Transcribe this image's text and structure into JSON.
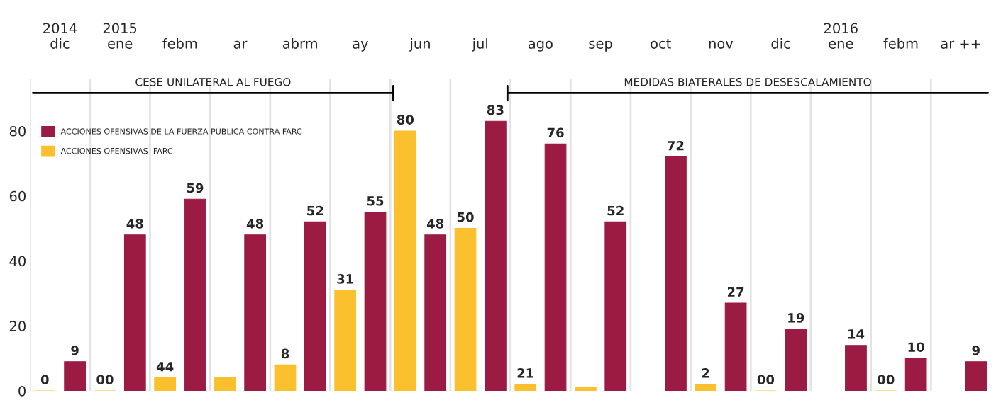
{
  "chart_data": {
    "type": "bar",
    "categories": [
      "2014\ndic",
      "2015\nene",
      "febm",
      "ar",
      "abrm",
      "ay",
      "jun",
      "jul",
      "ago",
      "sep",
      "oct",
      "nov",
      "dic",
      "2016\nene",
      "febm",
      "ar ++"
    ],
    "series": [
      {
        "name": "ACCIONES OFENSIVAS  FARC",
        "color": "#fbc02d",
        "values": [
          0,
          0,
          4,
          4,
          8,
          31,
          80,
          50,
          2,
          1,
          null,
          2,
          0,
          null,
          0,
          null
        ],
        "value_labels": [
          "0",
          "00",
          null,
          null,
          "8",
          "31",
          "80",
          "50",
          null,
          null,
          null,
          "2",
          "00",
          null,
          "00",
          null
        ]
      },
      {
        "name": "ACCIONES OFENSIVAS DE LA FUERZA PÚBLICA CONTRA FARC",
        "color": "#9b1b42",
        "values": [
          9,
          48,
          59,
          48,
          52,
          55,
          48,
          83,
          76,
          52,
          72,
          27,
          19,
          14,
          10,
          9
        ],
        "value_labels": [
          "9",
          "48",
          "59",
          "48",
          "52",
          "55",
          "48",
          "83",
          "76",
          "52",
          "72",
          "27",
          "19",
          "14",
          "10",
          "9"
        ]
      }
    ],
    "ylim": [
      0,
      96
    ],
    "yticks": [
      0,
      20,
      40,
      60,
      80
    ],
    "grid": "x",
    "legend": "top left",
    "annotations": [
      "CESE UNILATERAL AL FUEGO",
      "MEDIDAS BIATERALES DE DESESCALAMIENTO",
      "44",
      "21"
    ]
  }
}
